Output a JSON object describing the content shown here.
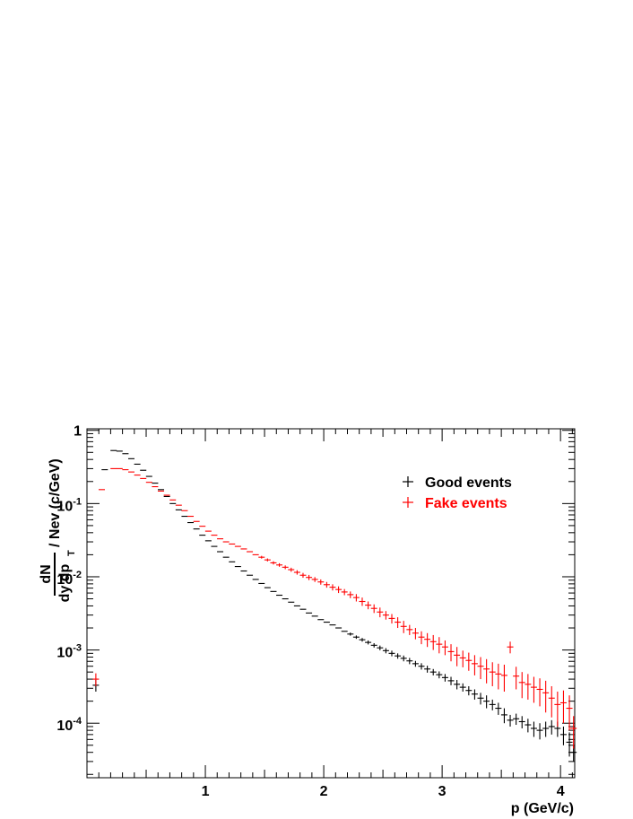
{
  "chart_data": {
    "type": "scatter",
    "title": "",
    "xlabel": "p  (GeV/c)",
    "ylabel": "dN/(dy dp_T) / Nev (c/GeV)",
    "ylabel_parts": {
      "num": "dN",
      "den": "dy dp",
      "den_sub": "T",
      "rest": "/ Nev (c/GeV)"
    },
    "xlim": [
      0,
      4.12
    ],
    "ylim": [
      1.8e-05,
      1.05
    ],
    "yscale": "log",
    "grid": false,
    "legend_position": "top-right",
    "x_ticks": [
      "1",
      "2",
      "3",
      "4"
    ],
    "y_ticks": [
      {
        "base": "10",
        "exp": "-4",
        "value": 0.0001
      },
      {
        "base": "10",
        "exp": "-3",
        "value": 0.001
      },
      {
        "base": "10",
        "exp": "-2",
        "value": 0.01
      },
      {
        "base": "10",
        "exp": "-1",
        "value": 0.1
      },
      {
        "base": "1",
        "exp": "",
        "value": 1
      }
    ],
    "series": [
      {
        "name": "Good events",
        "color": "#000000",
        "points": [
          [
            0.075,
            0.00033,
            6e-05
          ],
          [
            0.15,
            0.29,
            0
          ],
          [
            0.225,
            0.53,
            0
          ],
          [
            0.275,
            0.52,
            0
          ],
          [
            0.325,
            0.48,
            0
          ],
          [
            0.375,
            0.41,
            0
          ],
          [
            0.425,
            0.345,
            0
          ],
          [
            0.475,
            0.285,
            0
          ],
          [
            0.525,
            0.235,
            0
          ],
          [
            0.575,
            0.19,
            0
          ],
          [
            0.625,
            0.155,
            0
          ],
          [
            0.675,
            0.125,
            0
          ],
          [
            0.725,
            0.1,
            0
          ],
          [
            0.775,
            0.082,
            0
          ],
          [
            0.825,
            0.067,
            0
          ],
          [
            0.875,
            0.055,
            0
          ],
          [
            0.925,
            0.045,
            0
          ],
          [
            0.975,
            0.037,
            0
          ],
          [
            1.025,
            0.031,
            0
          ],
          [
            1.075,
            0.026,
            0
          ],
          [
            1.125,
            0.022,
            0
          ],
          [
            1.175,
            0.0185,
            0
          ],
          [
            1.225,
            0.016,
            0
          ],
          [
            1.275,
            0.0138,
            0
          ],
          [
            1.325,
            0.012,
            0
          ],
          [
            1.375,
            0.0105,
            0
          ],
          [
            1.425,
            0.0092,
            0
          ],
          [
            1.475,
            0.0081,
            0
          ],
          [
            1.525,
            0.0071,
            0
          ],
          [
            1.575,
            0.0063,
            0
          ],
          [
            1.625,
            0.0056,
            0
          ],
          [
            1.675,
            0.005,
            0
          ],
          [
            1.725,
            0.0045,
            0
          ],
          [
            1.775,
            0.004,
            0
          ],
          [
            1.825,
            0.0036,
            0
          ],
          [
            1.875,
            0.0032,
            0
          ],
          [
            1.925,
            0.0029,
            0
          ],
          [
            1.975,
            0.0026,
            0
          ],
          [
            2.025,
            0.0024,
            0
          ],
          [
            2.075,
            0.0022,
            0
          ],
          [
            2.125,
            0.002,
            0
          ],
          [
            2.175,
            0.0018,
            0
          ],
          [
            2.225,
            0.00165,
            8e-05
          ],
          [
            2.275,
            0.0015,
            8e-05
          ],
          [
            2.325,
            0.00138,
            8e-05
          ],
          [
            2.375,
            0.00127,
            8e-05
          ],
          [
            2.425,
            0.00116,
            8e-05
          ],
          [
            2.475,
            0.00107,
            8e-05
          ],
          [
            2.525,
            0.00098,
            8e-05
          ],
          [
            2.575,
            0.0009,
            8e-05
          ],
          [
            2.625,
            0.00083,
            7e-05
          ],
          [
            2.675,
            0.00077,
            7e-05
          ],
          [
            2.725,
            0.00071,
            7e-05
          ],
          [
            2.775,
            0.00065,
            6e-05
          ],
          [
            2.825,
            0.0006,
            6e-05
          ],
          [
            2.875,
            0.00055,
            6e-05
          ],
          [
            2.925,
            0.0005,
            5e-05
          ],
          [
            2.975,
            0.00046,
            5e-05
          ],
          [
            3.025,
            0.00042,
            5e-05
          ],
          [
            3.075,
            0.00038,
            5e-05
          ],
          [
            3.125,
            0.00034,
            5e-05
          ],
          [
            3.175,
            0.00031,
            4e-05
          ],
          [
            3.225,
            0.00028,
            4e-05
          ],
          [
            3.275,
            0.00025,
            4e-05
          ],
          [
            3.325,
            0.00022,
            4e-05
          ],
          [
            3.375,
            0.0002,
            4e-05
          ],
          [
            3.425,
            0.00018,
            3e-05
          ],
          [
            3.475,
            0.00016,
            3e-05
          ],
          [
            3.525,
            0.00013,
            3e-05
          ],
          [
            3.575,
            0.00011,
            2e-05
          ],
          [
            3.625,
            0.000115,
            2e-05
          ],
          [
            3.675,
            0.000105,
            2e-05
          ],
          [
            3.725,
            9.5e-05,
            2e-05
          ],
          [
            3.775,
            8.5e-05,
            2e-05
          ],
          [
            3.825,
            8e-05,
            2e-05
          ],
          [
            3.875,
            8.5e-05,
            2e-05
          ],
          [
            3.925,
            9e-05,
            2e-05
          ],
          [
            3.975,
            8.5e-05,
            2e-05
          ],
          [
            4.025,
            7e-05,
            2e-05
          ],
          [
            4.075,
            5.5e-05,
            2e-05
          ],
          [
            4.11,
            4e-05,
            1e-05
          ]
        ]
      },
      {
        "name": "Fake events",
        "color": "#ff0000",
        "points": [
          [
            0.075,
            0.0004,
            8e-05
          ],
          [
            0.125,
            0.155,
            0
          ],
          [
            0.225,
            0.3,
            0
          ],
          [
            0.275,
            0.3,
            0
          ],
          [
            0.325,
            0.29,
            0
          ],
          [
            0.375,
            0.27,
            0
          ],
          [
            0.425,
            0.245,
            0
          ],
          [
            0.475,
            0.22,
            0
          ],
          [
            0.525,
            0.195,
            0
          ],
          [
            0.575,
            0.17,
            0
          ],
          [
            0.625,
            0.148,
            0
          ],
          [
            0.675,
            0.13,
            0
          ],
          [
            0.725,
            0.112,
            0
          ],
          [
            0.775,
            0.095,
            0
          ],
          [
            0.825,
            0.08,
            0
          ],
          [
            0.875,
            0.067,
            0
          ],
          [
            0.925,
            0.057,
            0
          ],
          [
            0.975,
            0.049,
            0
          ],
          [
            1.025,
            0.042,
            0
          ],
          [
            1.075,
            0.037,
            0
          ],
          [
            1.125,
            0.033,
            0
          ],
          [
            1.175,
            0.03,
            0
          ],
          [
            1.225,
            0.028,
            0
          ],
          [
            1.275,
            0.026,
            0
          ],
          [
            1.325,
            0.024,
            0
          ],
          [
            1.375,
            0.022,
            0
          ],
          [
            1.425,
            0.02,
            0
          ],
          [
            1.475,
            0.0185,
            0.0008
          ],
          [
            1.525,
            0.017,
            0.0008
          ],
          [
            1.575,
            0.0155,
            0.0008
          ],
          [
            1.625,
            0.0145,
            0.0008
          ],
          [
            1.675,
            0.0135,
            0.0008
          ],
          [
            1.725,
            0.0125,
            0.0008
          ],
          [
            1.775,
            0.0115,
            0.0008
          ],
          [
            1.825,
            0.0105,
            0.0008
          ],
          [
            1.875,
            0.0098,
            0.0008
          ],
          [
            1.925,
            0.0092,
            0.0007
          ],
          [
            1.975,
            0.0085,
            0.0007
          ],
          [
            2.025,
            0.0078,
            0.0007
          ],
          [
            2.075,
            0.0072,
            0.0007
          ],
          [
            2.125,
            0.0067,
            0.0007
          ],
          [
            2.175,
            0.0062,
            0.0006
          ],
          [
            2.225,
            0.0057,
            0.0006
          ],
          [
            2.275,
            0.0052,
            0.0006
          ],
          [
            2.325,
            0.0046,
            0.0006
          ],
          [
            2.375,
            0.0041,
            0.0005
          ],
          [
            2.425,
            0.0037,
            0.0005
          ],
          [
            2.475,
            0.0033,
            0.0005
          ],
          [
            2.525,
            0.003,
            0.0004
          ],
          [
            2.575,
            0.0027,
            0.0004
          ],
          [
            2.625,
            0.0024,
            0.0004
          ],
          [
            2.675,
            0.0021,
            0.0004
          ],
          [
            2.725,
            0.0019,
            0.0003
          ],
          [
            2.775,
            0.0017,
            0.0003
          ],
          [
            2.825,
            0.0015,
            0.0003
          ],
          [
            2.875,
            0.0014,
            0.0003
          ],
          [
            2.925,
            0.0013,
            0.0003
          ],
          [
            2.975,
            0.0012,
            0.0003
          ],
          [
            3.025,
            0.0011,
            0.00025
          ],
          [
            3.075,
            0.00095,
            0.00025
          ],
          [
            3.125,
            0.00085,
            0.00025
          ],
          [
            3.175,
            0.00078,
            0.0002
          ],
          [
            3.225,
            0.00072,
            0.0002
          ],
          [
            3.275,
            0.00065,
            0.0002
          ],
          [
            3.325,
            0.0006,
            0.0002
          ],
          [
            3.375,
            0.00055,
            0.0002
          ],
          [
            3.425,
            0.0005,
            0.00018
          ],
          [
            3.475,
            0.00047,
            0.00018
          ],
          [
            3.525,
            0.00045,
            0.00018
          ],
          [
            3.575,
            0.0011,
            0.0002
          ],
          [
            3.625,
            0.00044,
            0.00015
          ],
          [
            3.675,
            0.00036,
            0.00014
          ],
          [
            3.725,
            0.00034,
            0.00013
          ],
          [
            3.775,
            0.00031,
            0.00012
          ],
          [
            3.825,
            0.00029,
            0.00012
          ],
          [
            3.875,
            0.00026,
            0.00012
          ],
          [
            3.925,
            0.00022,
            0.0001
          ],
          [
            3.975,
            0.00018,
            9e-05
          ],
          [
            4.025,
            0.00019,
            9e-05
          ],
          [
            4.075,
            0.00016,
            8e-05
          ],
          [
            4.11,
            8.5e-05,
            4e-05
          ]
        ]
      }
    ]
  }
}
